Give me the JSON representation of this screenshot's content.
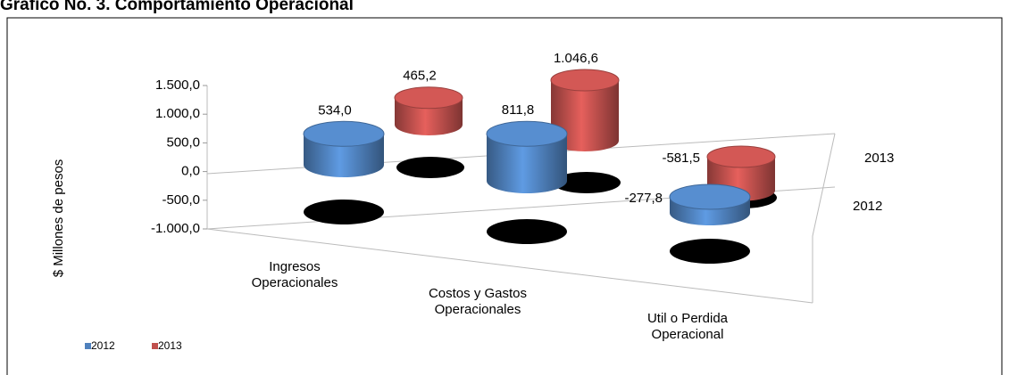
{
  "chart_data": {
    "type": "bar3d",
    "title": "Grafico No. 3. Comportamiento Operacional",
    "y_label": "$ Millones de pesos",
    "categories": [
      "Ingresos Operacionales",
      "Costos y Gastos Operacionales",
      "Util o Perdida Operacional"
    ],
    "series": [
      {
        "name": "2012",
        "color": "#4f81bd",
        "values": [
          534.0,
          811.8,
          -277.8
        ],
        "value_labels": [
          "534,0",
          "811,8",
          "-277,8"
        ]
      },
      {
        "name": "2013",
        "color": "#c0504d",
        "values": [
          465.2,
          1046.6,
          -581.5
        ],
        "value_labels": [
          "465,2",
          "1.046,6",
          "-581,5"
        ]
      }
    ],
    "ylim": [
      -1000,
      1500
    ],
    "yticks": [
      {
        "value": -1000,
        "label": "-1.000,0"
      },
      {
        "value": -500,
        "label": "-500,0"
      },
      {
        "value": 0,
        "label": "0,0"
      },
      {
        "value": 500,
        "label": "500,0"
      },
      {
        "value": 1000,
        "label": "1.000,0"
      },
      {
        "value": 1500,
        "label": "1.500,0"
      }
    ],
    "legend": "bottom-left"
  }
}
